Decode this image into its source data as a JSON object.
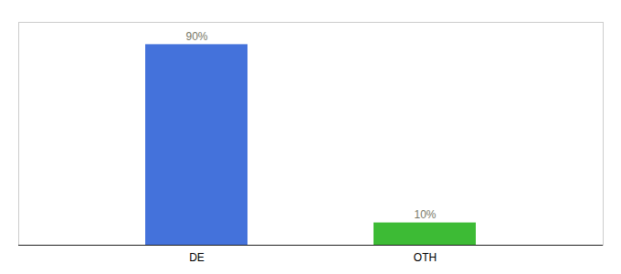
{
  "chart_data": {
    "type": "bar",
    "categories": [
      "DE",
      "OTH"
    ],
    "values": [
      90,
      10
    ],
    "value_labels": [
      "90%",
      "10%"
    ],
    "colors": [
      "#4472db",
      "#3dbb35"
    ],
    "ylim": [
      0,
      100
    ],
    "yticks": [],
    "data_labels": true,
    "tick_labels": "x",
    "grid": false
  }
}
